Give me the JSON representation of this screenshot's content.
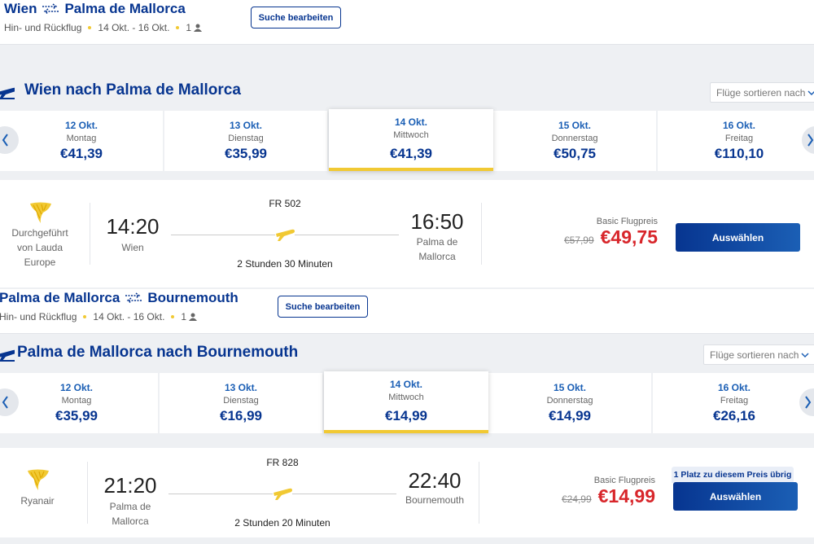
{
  "searches": [
    {
      "from": "Wien",
      "to": "Palma de Mallorca",
      "trip_type": "Hin- und Rückflug",
      "dates": "14 Okt. - 16 Okt.",
      "passengers": "1",
      "edit_button": "Suche bearbeiten",
      "heading": "Wien nach Palma de Mallorca",
      "sort_label": "Flüge sortieren nach",
      "days": [
        {
          "date": "12 Okt.",
          "weekday": "Montag",
          "price": "€41,39"
        },
        {
          "date": "13 Okt.",
          "weekday": "Dienstag",
          "price": "€35,99"
        },
        {
          "date": "14 Okt.",
          "weekday": "Mittwoch",
          "price": "€41,39"
        },
        {
          "date": "15 Okt.",
          "weekday": "Donnerstag",
          "price": "€50,75"
        },
        {
          "date": "16 Okt.",
          "weekday": "Freitag",
          "price": "€110,10"
        }
      ],
      "flight": {
        "operator": "Durchgeführt von Lauda Europe",
        "departure_time": "14:20",
        "departure_city": "Wien",
        "flight_number": "FR 502",
        "duration": "2 Stunden 30 Minuten",
        "arrival_time": "16:50",
        "arrival_city": "Palma de Mallorca",
        "fare_label": "Basic Flugpreis",
        "old_price": "€57,99",
        "price": "€49,75",
        "select_button": "Auswählen"
      }
    },
    {
      "from": "Palma de Mallorca",
      "to": "Bournemouth",
      "trip_type": "Hin- und Rückflug",
      "dates": "14 Okt. - 16 Okt.",
      "passengers": "1",
      "edit_button": "Suche bearbeiten",
      "heading": "Palma de Mallorca nach Bournemouth",
      "sort_label": "Flüge sortieren nach",
      "days": [
        {
          "date": "12 Okt.",
          "weekday": "Montag",
          "price": "€35,99"
        },
        {
          "date": "13 Okt.",
          "weekday": "Dienstag",
          "price": "€16,99"
        },
        {
          "date": "14 Okt.",
          "weekday": "Mittwoch",
          "price": "€14,99"
        },
        {
          "date": "15 Okt.",
          "weekday": "Donnerstag",
          "price": "€14,99"
        },
        {
          "date": "16 Okt.",
          "weekday": "Freitag",
          "price": "€26,16"
        }
      ],
      "flight": {
        "operator": "Ryanair",
        "departure_time": "21:20",
        "departure_city": "Palma de Mallorca",
        "flight_number": "FR 828",
        "duration": "2 Stunden 20 Minuten",
        "arrival_time": "22:40",
        "arrival_city": "Bournemouth",
        "fare_label": "Basic Flugpreis",
        "old_price": "€24,99",
        "price": "€14,99",
        "availability_note": "1 Platz zu diesem Preis übrig",
        "select_button": "Auswählen"
      }
    }
  ]
}
